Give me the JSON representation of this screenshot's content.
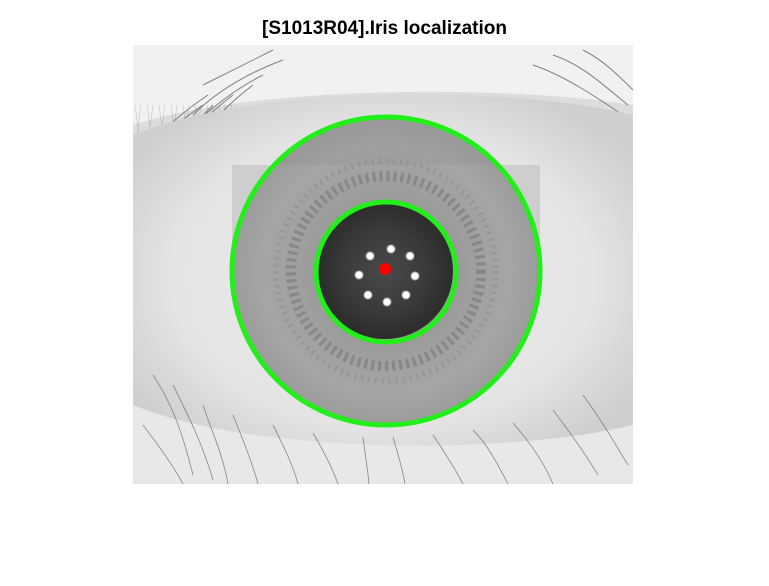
{
  "figure": {
    "title": "[S1013R04].Iris localization"
  },
  "overlay": {
    "iris_boundary_color": "#22ee1a",
    "pupil_boundary_color": "#22ee1a",
    "center_marker_color": "#ff0000",
    "reflection_color": "#ffffff"
  },
  "image": {
    "content": "grayscale-eye-photo"
  }
}
